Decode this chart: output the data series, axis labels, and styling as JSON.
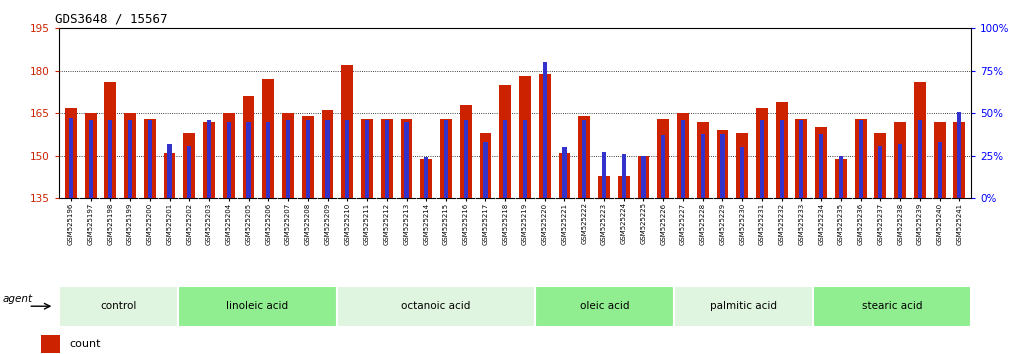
{
  "title": "GDS3648 / 15567",
  "samples": [
    "GSM525196",
    "GSM525197",
    "GSM525198",
    "GSM525199",
    "GSM525200",
    "GSM525201",
    "GSM525202",
    "GSM525203",
    "GSM525204",
    "GSM525205",
    "GSM525206",
    "GSM525207",
    "GSM525208",
    "GSM525209",
    "GSM525210",
    "GSM525211",
    "GSM525212",
    "GSM525213",
    "GSM525214",
    "GSM525215",
    "GSM525216",
    "GSM525217",
    "GSM525218",
    "GSM525219",
    "GSM525220",
    "GSM525221",
    "GSM525222",
    "GSM525223",
    "GSM525224",
    "GSM525225",
    "GSM525226",
    "GSM525227",
    "GSM525228",
    "GSM525229",
    "GSM525230",
    "GSM525231",
    "GSM525232",
    "GSM525233",
    "GSM525234",
    "GSM525235",
    "GSM525236",
    "GSM525237",
    "GSM525238",
    "GSM525239",
    "GSM525240",
    "GSM525241"
  ],
  "counts": [
    167,
    165,
    176,
    165,
    163,
    151,
    158,
    162,
    165,
    171,
    177,
    165,
    164,
    166,
    182,
    163,
    163,
    163,
    149,
    163,
    168,
    158,
    175,
    178,
    179,
    151,
    164,
    143,
    143,
    150,
    163,
    165,
    162,
    159,
    158,
    167,
    169,
    163,
    160,
    149,
    163,
    158,
    162,
    176,
    162,
    162
  ],
  "percentiles": [
    47,
    46,
    46,
    46,
    46,
    32,
    31,
    46,
    45,
    45,
    45,
    46,
    46,
    46,
    46,
    46,
    46,
    45,
    24,
    46,
    46,
    33,
    46,
    46,
    80,
    30,
    46,
    27,
    26,
    25,
    37,
    46,
    38,
    38,
    30,
    46,
    46,
    46,
    38,
    25,
    46,
    31,
    32,
    46,
    33,
    51
  ],
  "groups": [
    {
      "label": "control",
      "start": 0,
      "end": 6
    },
    {
      "label": "linoleic acid",
      "start": 6,
      "end": 14
    },
    {
      "label": "octanoic acid",
      "start": 14,
      "end": 24
    },
    {
      "label": "oleic acid",
      "start": 24,
      "end": 31
    },
    {
      "label": "palmitic acid",
      "start": 31,
      "end": 38
    },
    {
      "label": "stearic acid",
      "start": 38,
      "end": 46
    }
  ],
  "group_colors": [
    "#e0f5e0",
    "#90ee90",
    "#e0f5e0",
    "#90ee90",
    "#e0f5e0",
    "#90ee90"
  ],
  "ylim_left": [
    135,
    195
  ],
  "ylim_right": [
    0,
    100
  ],
  "yticks_left": [
    135,
    150,
    165,
    180,
    195
  ],
  "yticks_right": [
    0,
    25,
    50,
    75,
    100
  ],
  "bar_color": "#cc2200",
  "percentile_color": "#3333cc",
  "plot_bg": "#ffffff",
  "tick_bg": "#d8d8d8",
  "legend_count_color": "#cc2200",
  "legend_percentile_color": "#3333cc"
}
